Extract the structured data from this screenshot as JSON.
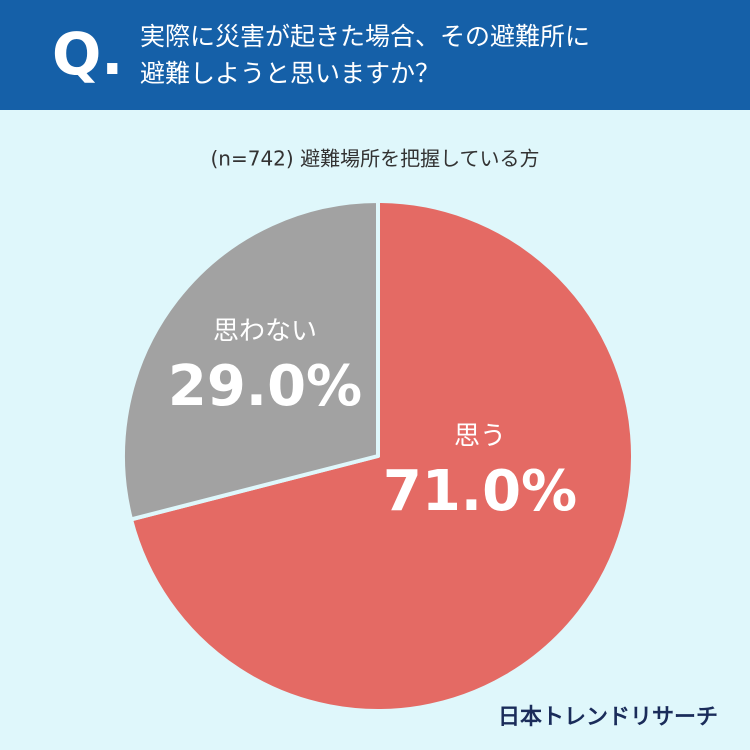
{
  "chart_data": {
    "type": "pie",
    "question_mark": "Q.",
    "title_lines": [
      "実際に災害が起きた場合、その避難所に",
      "避難しようと思いますか？"
    ],
    "subtitle": "(n=742) 避難場所を把握している方",
    "categories": [
      "思う",
      "思わない"
    ],
    "values": [
      71.0,
      29.0
    ],
    "value_labels": [
      "71.0%",
      "29.0%"
    ],
    "colors": [
      "#e46a64",
      "#a2a2a2"
    ],
    "source": "日本トレンドリサーチ"
  }
}
